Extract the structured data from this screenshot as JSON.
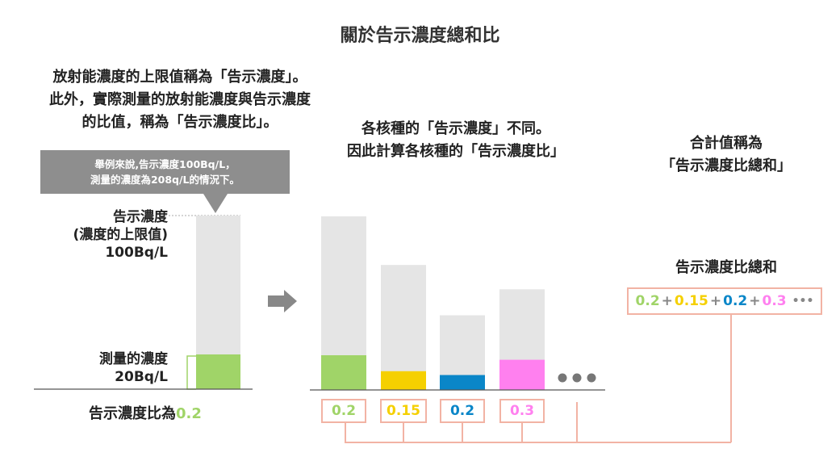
{
  "title": "關於告示濃度總和比",
  "intro_lines": [
    "放射能濃度的上限值稱為「告示濃度」。",
    "此外，實際測量的放射能濃度與告示濃度",
    "的比值，稱為「告示濃度比」。"
  ],
  "callout_lines": [
    "舉例來說,告示濃度100Bq/L，",
    "測量的濃度為208q/L的情況下。"
  ],
  "left_chart": {
    "limit_label": [
      "告示濃度",
      "(濃度的上限值)",
      "100Bq/L"
    ],
    "measured_label": [
      "測量的濃度",
      "20Bq/L"
    ],
    "limit_value": 100,
    "measured_value": 20,
    "ratio_label": "告示濃度比為",
    "ratio_value": "0.2"
  },
  "middle_heading": [
    "各核種的「告示濃度」不同。",
    "因此計算各核種的「告示濃度比」"
  ],
  "right_heading": [
    "合計值稱為",
    "「告示濃度比總和」"
  ],
  "sum_label": "告示濃度比總和",
  "nuclides": [
    {
      "limit_height_rel": 1.0,
      "ratio": 0.2,
      "ratio_text": "0.2",
      "color": "#a0d468"
    },
    {
      "limit_height_rel": 0.72,
      "ratio": 0.15,
      "ratio_text": "0.15",
      "color": "#f5d000"
    },
    {
      "limit_height_rel": 0.43,
      "ratio": 0.2,
      "ratio_text": "0.2",
      "color": "#0a86c8"
    },
    {
      "limit_height_rel": 0.58,
      "ratio": 0.3,
      "ratio_text": "0.3",
      "color": "#ff80ef"
    }
  ],
  "plus": "+",
  "ellipsis": "•••",
  "colors": {
    "limit_bar": "#e5e5e5",
    "connector": "#f2b3a4",
    "arrow": "#888888",
    "callout": "#8e8e8e"
  }
}
